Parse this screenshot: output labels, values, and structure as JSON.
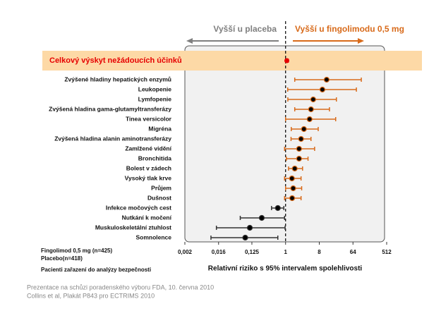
{
  "chart_data": {
    "type": "forest",
    "xscale": "log",
    "header_left": "Vyšší u placeba",
    "header_right": "Vyšší u fingolimodu 0,5 mg",
    "xlabel": "Relativní riziko s 95% intervalem spolehlivosti",
    "xlim": [
      0.002,
      512
    ],
    "xticks": [
      {
        "value": 0.002,
        "label": "0,002"
      },
      {
        "value": 0.016,
        "label": "0,016"
      },
      {
        "value": 0.125,
        "label": "0,125"
      },
      1,
      8,
      64,
      512
    ],
    "overall": {
      "label": "Celkový výskyt nežádoucích účinků",
      "value": 1.08,
      "lower": 1.0,
      "upper": 1.18,
      "color": "#e60000",
      "band_color": "#fdd9a6"
    },
    "categories": [
      "Zvýšené hladiny hepatických enzymů",
      "Leukopenie",
      "Lymfopenie",
      "Zvýšená hladina gama-glutamyltransferázy",
      "Tinea versicolor",
      "Migréna",
      "Zvýšená hladina alanin aminotransferázy",
      "Zamlžené vidění",
      "Bronchitida",
      "Bolest v zádech",
      "Vysoký tlak krve",
      "Průjem",
      "Dušnost",
      "Infekce močových cest",
      "Nutkání k močení",
      "Muskuloskeletální ztuhlost",
      "Somnolence"
    ],
    "values": [
      12.6,
      9.7,
      5.5,
      4.8,
      4.4,
      3.1,
      2.6,
      2.3,
      2.3,
      1.76,
      1.48,
      1.6,
      1.5,
      0.62,
      0.23,
      0.11,
      0.083
    ],
    "lower": [
      1.76,
      1.14,
      1.15,
      1.76,
      1.0,
      1.42,
      1.4,
      0.94,
      1.05,
      1.2,
      0.94,
      1.0,
      0.94,
      0.42,
      0.061,
      0.014,
      0.01
    ],
    "upper": [
      107,
      79,
      23,
      15,
      22,
      7.5,
      4.8,
      6.0,
      4.0,
      2.85,
      2.6,
      2.7,
      2.6,
      0.9,
      0.94,
      0.97,
      0.62
    ],
    "colors": [
      "#d86a1a",
      "#d86a1a",
      "#d86a1a",
      "#d86a1a",
      "#d86a1a",
      "#d86a1a",
      "#d86a1a",
      "#d86a1a",
      "#d86a1a",
      "#d86a1a",
      "#d86a1a",
      "#d86a1a",
      "#d86a1a",
      "#333333",
      "#333333",
      "#333333",
      "#333333"
    ],
    "left_notes": [
      "Fingolimod 0,5 mg (n=425)",
      "Placebo(n=418)",
      "Pacienti zařazení do analýzy bezpečnosti"
    ],
    "footnotes": [
      "Prezentace na schůzi poradenského výboru FDA, 10. června 2010",
      "Collins et al, Plakát P843 pro ECTRIMS 2010"
    ]
  }
}
